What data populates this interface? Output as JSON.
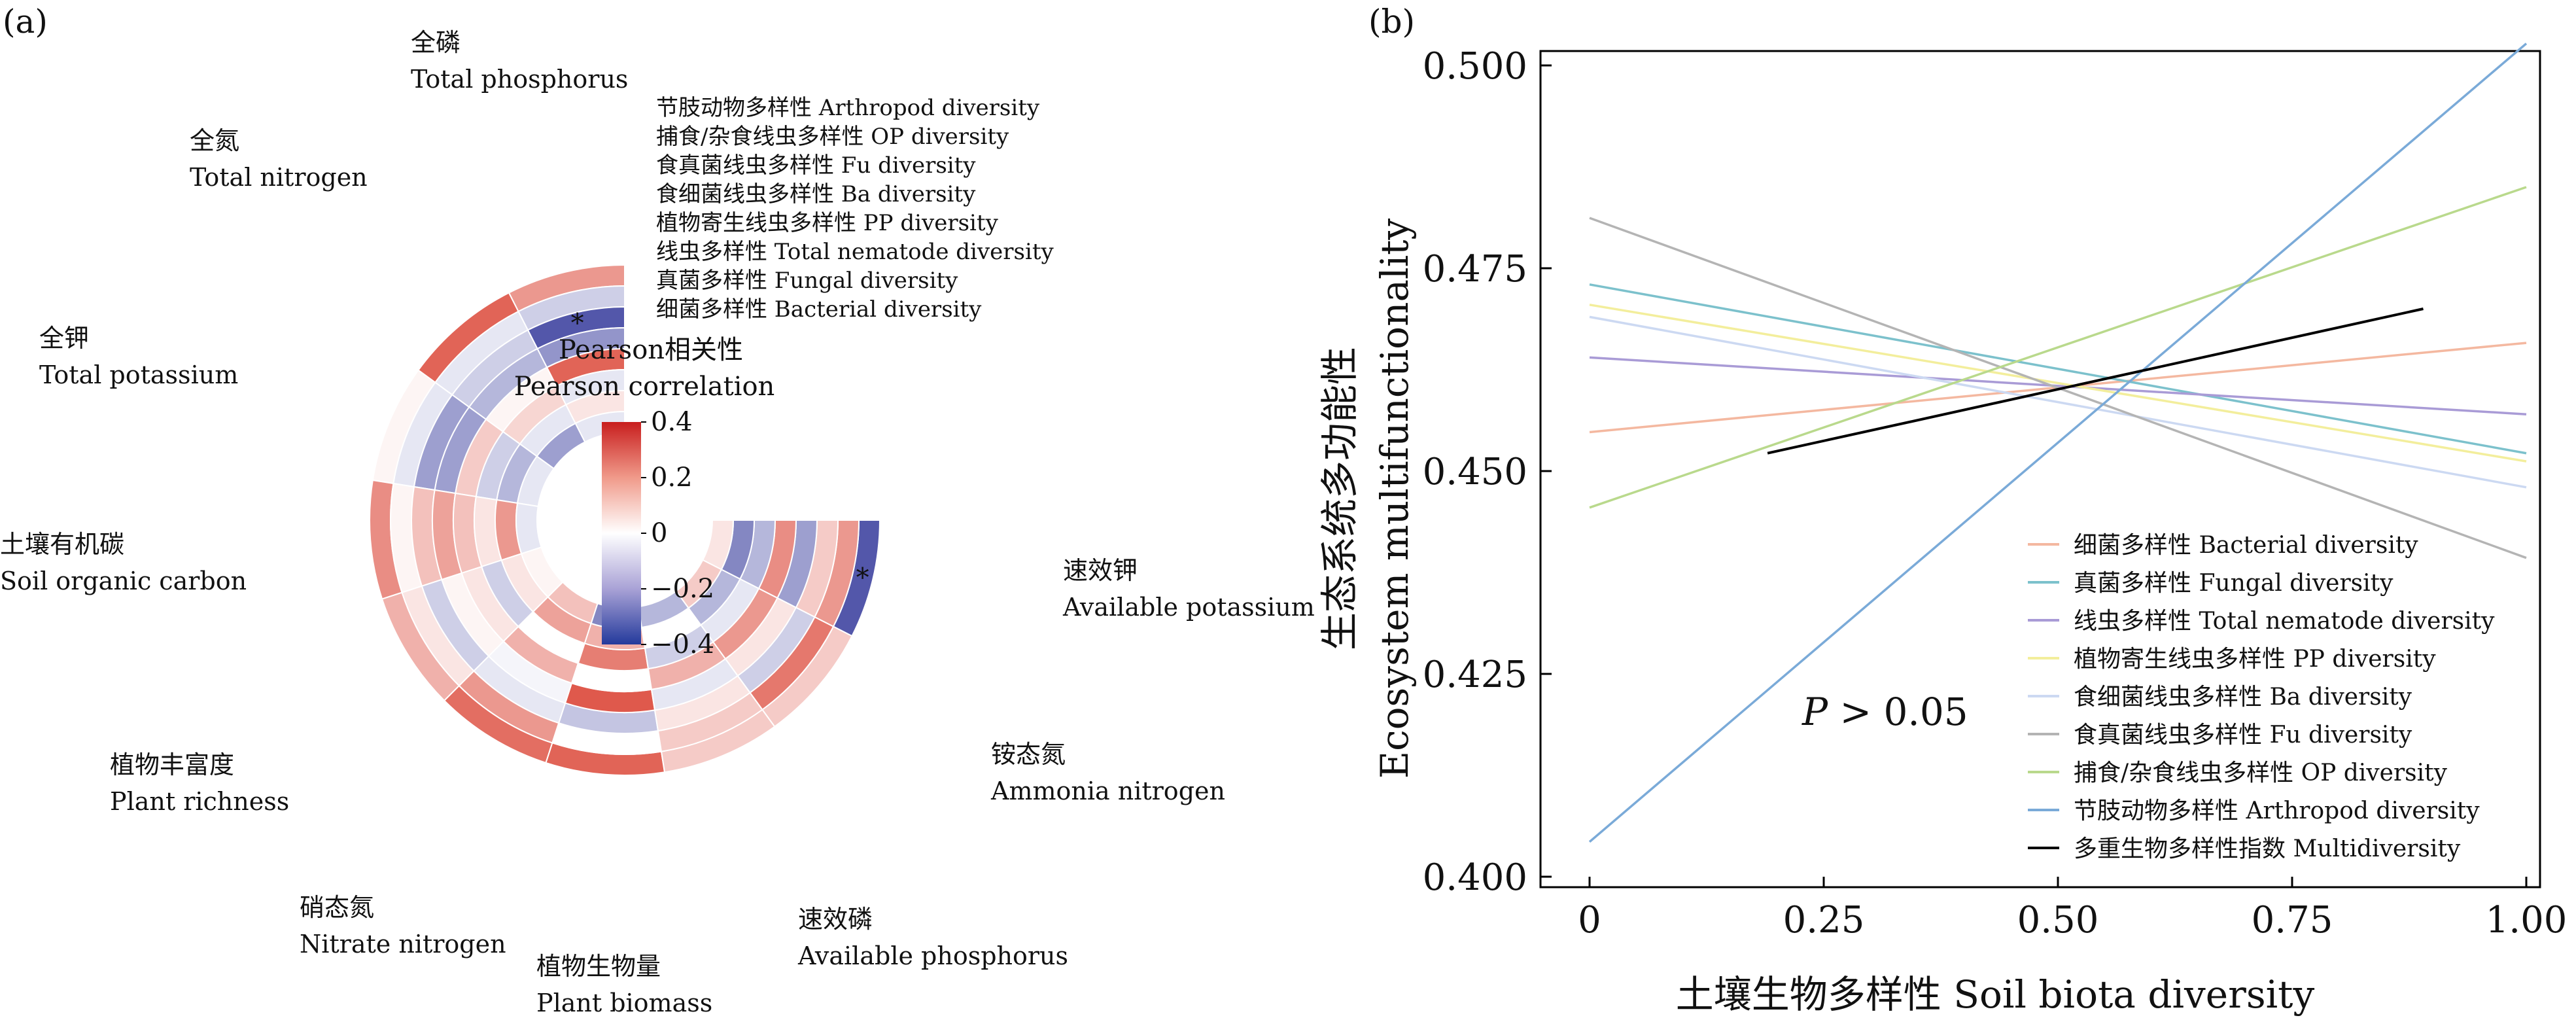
{
  "panels": {
    "a": {
      "label": "(a)"
    },
    "b": {
      "label": "(b)"
    }
  },
  "colors": {
    "positive": "#d7301f",
    "neutral": "#ffffff",
    "negative": "#3a3f9e",
    "axis": "#000000",
    "multidiversity_line": "#000000"
  },
  "chart_data": [
    {
      "type": "heatmap",
      "layout": "circular",
      "legend_title": [
        "Pearson相关性",
        "Pearson correlation"
      ],
      "colorbar": {
        "ticks": [
          "0.4",
          "0.2",
          "0",
          "−0.2",
          "−0.4"
        ],
        "range": [
          -0.4,
          0.4
        ]
      },
      "rows": [
        "节肢动物多样性  Arthropod diversity",
        "捕食/杂食线虫多样性 OP diversity",
        "食真菌线虫多样性 Fu diversity",
        "食细菌线虫多样性 Ba diversity",
        "植物寄生线虫多样性 PP diversity",
        "线虫多样性 Total nematode diversity",
        "真菌多样性 Fungal diversity",
        "细菌多样性 Bacterial diversity"
      ],
      "columns": [
        {
          "zh": "全磷",
          "en": "Total phosphorus"
        },
        {
          "zh": "全氮",
          "en": "Total nitrogen"
        },
        {
          "zh": "全钾",
          "en": "Total potassium"
        },
        {
          "zh": "土壤有机碳",
          "en": "Soil organic carbon"
        },
        {
          "zh": "植物丰富度",
          "en": "Plant  richness"
        },
        {
          "zh": "硝态氮",
          "en": "Nitrate nitrogen"
        },
        {
          "zh": "植物生物量",
          "en": "Plant biomass"
        },
        {
          "zh": "速效磷",
          "en": "Available phosphorus"
        },
        {
          "zh": "铵态氮",
          "en": "Ammonia nitrogen"
        },
        {
          "zh": "速效钾",
          "en": "Available potassium"
        }
      ],
      "values": [
        [
          0.2,
          0.3,
          0.02,
          0.22,
          0.15,
          0.28,
          0.3,
          0.1,
          0.1,
          -0.35
        ],
        [
          -0.1,
          -0.05,
          -0.05,
          0.02,
          0.05,
          0.2,
          0.0,
          0.1,
          0.26,
          0.2
        ],
        [
          -0.35,
          -0.1,
          -0.2,
          0.12,
          -0.1,
          -0.05,
          -0.12,
          0.05,
          -0.1,
          0.1
        ],
        [
          -0.22,
          -0.15,
          -0.2,
          0.18,
          0.02,
          -0.02,
          0.32,
          -0.05,
          0.05,
          -0.2
        ],
        [
          0.3,
          0.02,
          0.1,
          0.12,
          0.05,
          0.15,
          0.0,
          0.15,
          0.2,
          0.22
        ],
        [
          -0.05,
          0.08,
          -0.1,
          0.05,
          -0.1,
          0.0,
          0.25,
          -0.1,
          -0.05,
          -0.15
        ],
        [
          0.05,
          -0.05,
          -0.15,
          0.2,
          0.05,
          0.18,
          0.15,
          0.0,
          -0.15,
          -0.25
        ],
        [
          -0.05,
          -0.2,
          -0.05,
          -0.05,
          0.02,
          0.12,
          -0.25,
          -0.15,
          0.1,
          0.05
        ]
      ],
      "significant": [
        {
          "row": 2,
          "col": 0,
          "mark": "*"
        },
        {
          "row": 0,
          "col": 9,
          "mark": "*"
        }
      ]
    },
    {
      "type": "line",
      "xlabel": "土壤生物多样性 Soil biota diversity",
      "ylabel": [
        "生态系统多功能性",
        "Ecosystem multifunctionality"
      ],
      "xlim": [
        0,
        1
      ],
      "ylim": [
        0.4,
        0.5
      ],
      "xticks": [
        "0",
        "0.25",
        "0.50",
        "0.75",
        "1.00"
      ],
      "yticks": [
        "0.400",
        "0.425",
        "0.450",
        "0.475",
        "0.500"
      ],
      "annotation": {
        "italic": "P",
        "rest": " > 0.05"
      },
      "legend_position": "lower-right",
      "series": [
        {
          "name": "细菌多样性 Bacterial diversity",
          "color": "#f4b8a0",
          "x": [
            0,
            1
          ],
          "y": [
            0.4548,
            0.4658
          ]
        },
        {
          "name": "真菌多样性 Fungal diversity",
          "color": "#7cc1cc",
          "x": [
            0,
            1
          ],
          "y": [
            0.473,
            0.4522
          ]
        },
        {
          "name": "线虫多样性 Total nematode diversity",
          "color": "#a99bd6",
          "x": [
            0,
            1
          ],
          "y": [
            0.464,
            0.457
          ]
        },
        {
          "name": "植物寄生线虫多样性 PP diversity",
          "color": "#f3ee9c",
          "x": [
            0,
            1
          ],
          "y": [
            0.4705,
            0.4512
          ]
        },
        {
          "name": "食细菌线虫多样性 Ba diversity",
          "color": "#ccd9f2",
          "x": [
            0,
            1
          ],
          "y": [
            0.469,
            0.448
          ]
        },
        {
          "name": "食真菌线虫多样性 Fu diversity",
          "color": "#b4b4b4",
          "x": [
            0,
            1
          ],
          "y": [
            0.4812,
            0.4393
          ]
        },
        {
          "name": "捕食/杂食线虫多样性 OP diversity",
          "color": "#b9d98c",
          "x": [
            0,
            1
          ],
          "y": [
            0.4455,
            0.485
          ]
        },
        {
          "name": "节肢动物多样性 Arthropod diversity",
          "color": "#7aaad8",
          "x": [
            0,
            1
          ],
          "y": [
            0.4043,
            0.5027
          ]
        },
        {
          "name": "多重生物多样性指数 Multidiversity",
          "color": "#000000",
          "x": [
            0.19,
            0.89
          ],
          "y": [
            0.4522,
            0.47
          ]
        }
      ]
    }
  ]
}
